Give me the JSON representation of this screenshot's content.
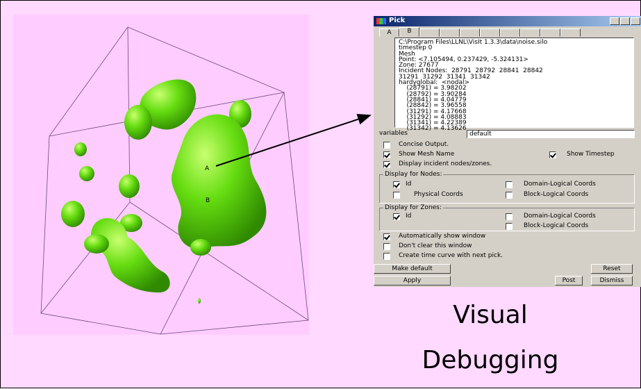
{
  "render": {
    "labels": [
      "A",
      "B"
    ]
  },
  "window": {
    "title": "Pick",
    "tabs": [
      "A",
      "B"
    ]
  },
  "pick_output": [
    "C:\\Program Files\\LLNL\\VisIt 1.3.3\\data\\noise.silo",
    "timestep 0",
    "Mesh",
    "Point: <7.105494, 0.237429, -5.324131>",
    "Zone: 27677",
    "Incident Nodes:  28791  28792  28841  28842",
    "31291  31292  31341  31342",
    "hardyglobal:  <nodal>",
    "    (28791) = 3.98202",
    "    (28792) = 3.90284",
    "    (28841) = 4.04779",
    "    (28842) = 3.96558",
    "    (31291) = 4.17668",
    "    (31292) = 4.08883",
    "    (31341) = 4.22389",
    "    (31342) = 4.13626"
  ],
  "variables": {
    "label": "variables",
    "value": "default"
  },
  "options": [
    {
      "label": "Concise Output.",
      "checked": false
    },
    {
      "label": "Show Mesh Name",
      "checked": true
    },
    {
      "label": "Show Timestep",
      "checked": true
    },
    {
      "label": "Display incident nodes/zones.",
      "checked": true
    }
  ],
  "nodes": {
    "title": "Display for Nodes:",
    "options": [
      {
        "label": "Id",
        "checked": true
      },
      {
        "label": "Domain-Logical Coords",
        "checked": false
      },
      {
        "label": "Physical Coords",
        "checked": false
      },
      {
        "label": "Block-Logical Coords",
        "checked": false
      }
    ]
  },
  "zones": {
    "title": "Display for Zones:",
    "options": [
      {
        "label": "Id",
        "checked": true
      },
      {
        "label": "Domain-Logical Coords",
        "checked": false
      },
      {
        "label": "Block-Logical Coords",
        "checked": false
      }
    ]
  },
  "window_options": [
    {
      "label": "Automatically show window",
      "checked": true
    },
    {
      "label": "Don't clear this window",
      "checked": false
    },
    {
      "label": "Create time curve with next pick.",
      "checked": false
    }
  ],
  "buttons": [
    "Make default",
    "Reset",
    "Apply",
    "Post",
    "Dismiss"
  ],
  "caption": [
    "Visual",
    "Debugging"
  ]
}
